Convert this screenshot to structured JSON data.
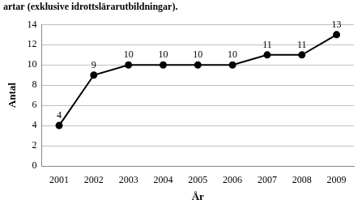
{
  "chart_data": {
    "type": "line",
    "title": "artar (exklusive idrottslärarutbildningar).",
    "x_label": "År",
    "y_label": "Antal",
    "categories": [
      "2001",
      "2002",
      "2003",
      "2004",
      "2005",
      "2006",
      "2007",
      "2008",
      "2009"
    ],
    "values": [
      4,
      9,
      10,
      10,
      10,
      10,
      11,
      11,
      13
    ],
    "color": "#000000",
    "marker": "circle",
    "line_style": "solid",
    "ylim": [
      0,
      14
    ],
    "yticks": [
      0,
      2,
      4,
      6,
      8,
      10,
      12,
      14
    ],
    "grid": true,
    "data_labels": true
  }
}
